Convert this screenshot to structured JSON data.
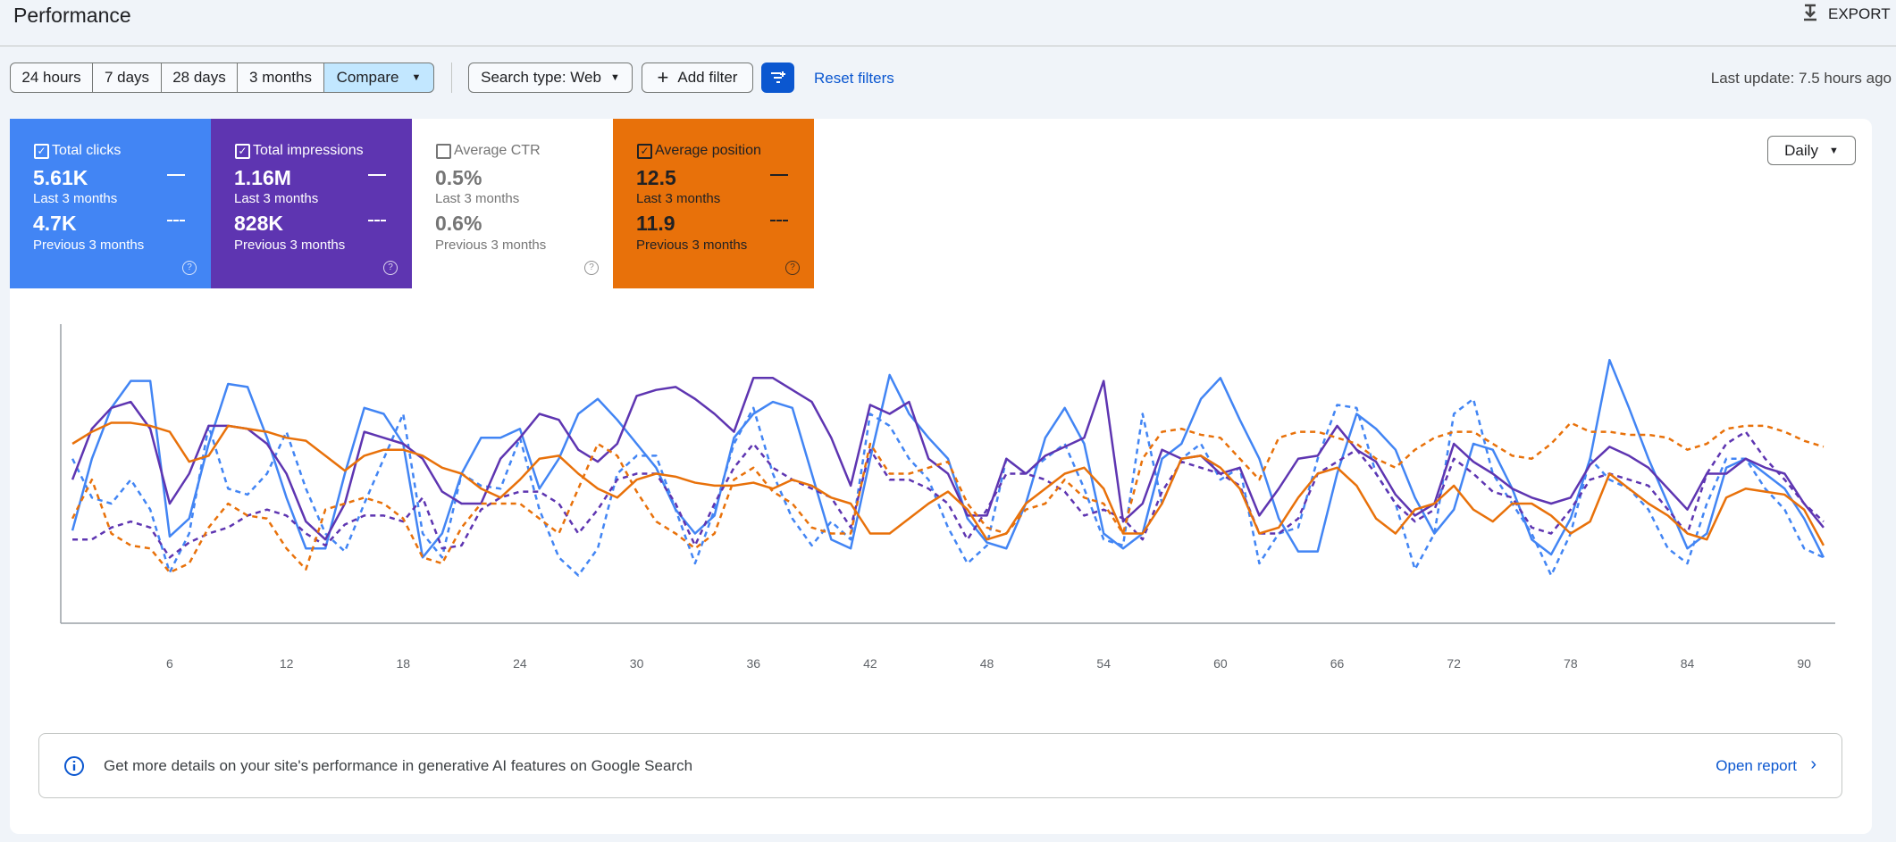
{
  "header": {
    "title": "Performance",
    "export": "EXPORT"
  },
  "toolbar": {
    "ranges": [
      "24 hours",
      "7 days",
      "28 days",
      "3 months"
    ],
    "compare": "Compare",
    "search_type": "Search type: Web",
    "add_filter": "Add filter",
    "reset_filters": "Reset filters",
    "last_update": "Last update: 7.5 hours ago"
  },
  "metrics": [
    {
      "label": "Total clicks",
      "current": "5.61K",
      "current_period": "Last 3 months",
      "previous": "4.7K",
      "previous_period": "Previous 3 months",
      "checked": true,
      "color": "#4285f4",
      "text_color": "#ffffff"
    },
    {
      "label": "Total impressions",
      "current": "1.16M",
      "current_period": "Last 3 months",
      "previous": "828K",
      "previous_period": "Previous 3 months",
      "checked": true,
      "color": "#5e35b1",
      "text_color": "#ffffff"
    },
    {
      "label": "Average CTR",
      "current": "0.5%",
      "current_period": "Last 3 months",
      "previous": "0.6%",
      "previous_period": "Previous 3 months",
      "checked": false,
      "color": "#ffffff",
      "text_color": "#757575"
    },
    {
      "label": "Average position",
      "current": "12.5",
      "current_period": "Last 3 months",
      "previous": "11.9",
      "previous_period": "Previous 3 months",
      "checked": true,
      "color": "#e8710a",
      "text_color": "#202124"
    }
  ],
  "granularity": "Daily",
  "chart_data": {
    "type": "line",
    "x": [
      1,
      2,
      3,
      4,
      5,
      6,
      7,
      8,
      9,
      10,
      11,
      12,
      13,
      14,
      15,
      16,
      17,
      18,
      19,
      20,
      21,
      22,
      23,
      24,
      25,
      26,
      27,
      28,
      29,
      30,
      31,
      32,
      33,
      34,
      35,
      36,
      37,
      38,
      39,
      40,
      41,
      42,
      43,
      44,
      45,
      46,
      47,
      48,
      49,
      50,
      51,
      52,
      53,
      54,
      55,
      56,
      57,
      58,
      59,
      60,
      61,
      62,
      63,
      64,
      65,
      66,
      67,
      68,
      69,
      70,
      71,
      72,
      73,
      74,
      75,
      76,
      77,
      78,
      79,
      80,
      81,
      82,
      83,
      84,
      85,
      86,
      87,
      88,
      89,
      90,
      91
    ],
    "xlim": [
      0.4,
      91.6
    ],
    "xticks": [
      6,
      12,
      18,
      24,
      30,
      36,
      42,
      48,
      54,
      60,
      66,
      72,
      78,
      84,
      90
    ],
    "ylim": [
      0,
      100
    ],
    "series": [
      {
        "color": "#4285f4",
        "dashed": false,
        "values": [
          31,
          55,
          72,
          81,
          81,
          29,
          35,
          60,
          80,
          79,
          62,
          42,
          25,
          25,
          50,
          72,
          70,
          60,
          22,
          30,
          50,
          62,
          62,
          65,
          45,
          55,
          70,
          75,
          68,
          60,
          52,
          38,
          30,
          36,
          62,
          70,
          74,
          72,
          50,
          28,
          25,
          55,
          83,
          70,
          62,
          55,
          35,
          27,
          25,
          40,
          62,
          72,
          60,
          30,
          25,
          30,
          55,
          60,
          75,
          82,
          68,
          55,
          35,
          24,
          24,
          50,
          70,
          65,
          58,
          42,
          30,
          38,
          60,
          58,
          45,
          28,
          23,
          35,
          55,
          88,
          72,
          55,
          40,
          25,
          30,
          52,
          55,
          50,
          45,
          35,
          22
        ]
      },
      {
        "color": "#4285f4",
        "dashed": true,
        "values": [
          55,
          42,
          40,
          48,
          38,
          17,
          30,
          66,
          45,
          43,
          50,
          64,
          45,
          30,
          24,
          40,
          55,
          70,
          30,
          22,
          50,
          46,
          45,
          62,
          38,
          22,
          16,
          25,
          50,
          56,
          56,
          38,
          20,
          38,
          60,
          72,
          50,
          35,
          26,
          34,
          28,
          70,
          66,
          55,
          48,
          32,
          20,
          26,
          55,
          50,
          55,
          60,
          45,
          28,
          26,
          70,
          40,
          55,
          60,
          48,
          52,
          20,
          30,
          32,
          55,
          73,
          72,
          50,
          40,
          18,
          30,
          70,
          75,
          50,
          40,
          30,
          16,
          30,
          55,
          48,
          45,
          38,
          25,
          20,
          40,
          55,
          55,
          45,
          38,
          25,
          22
        ]
      },
      {
        "color": "#5e35b1",
        "dashed": false,
        "values": [
          48,
          65,
          72,
          74,
          65,
          40,
          50,
          66,
          66,
          65,
          60,
          50,
          34,
          28,
          40,
          64,
          62,
          60,
          55,
          44,
          40,
          40,
          55,
          62,
          70,
          68,
          58,
          54,
          60,
          76,
          78,
          79,
          75,
          70,
          64,
          82,
          82,
          78,
          74,
          62,
          46,
          73,
          70,
          74,
          55,
          50,
          36,
          36,
          55,
          50,
          56,
          59,
          62,
          81,
          34,
          40,
          58,
          55,
          56,
          50,
          52,
          36,
          45,
          55,
          56,
          66,
          58,
          54,
          43,
          36,
          40,
          60,
          54,
          50,
          45,
          42,
          40,
          42,
          53,
          59,
          56,
          52,
          45,
          38,
          50,
          50,
          55,
          52,
          50,
          40,
          32
        ]
      },
      {
        "color": "#5e35b1",
        "dashed": true,
        "values": [
          28,
          28,
          32,
          34,
          32,
          22,
          27,
          30,
          32,
          36,
          38,
          36,
          30,
          26,
          33,
          36,
          36,
          34,
          42,
          25,
          26,
          38,
          42,
          44,
          44,
          40,
          30,
          38,
          48,
          50,
          50,
          40,
          26,
          40,
          52,
          60,
          52,
          48,
          45,
          42,
          32,
          58,
          48,
          48,
          45,
          40,
          28,
          38,
          50,
          50,
          48,
          44,
          36,
          38,
          35,
          28,
          44,
          54,
          52,
          50,
          46,
          30,
          30,
          35,
          50,
          54,
          58,
          50,
          40,
          34,
          38,
          55,
          50,
          44,
          42,
          32,
          30,
          38,
          48,
          50,
          48,
          46,
          38,
          30,
          50,
          60,
          64,
          55,
          48,
          40,
          34
        ]
      },
      {
        "color": "#e8710a",
        "dashed": false,
        "values": [
          60,
          64,
          67,
          67,
          66,
          64,
          54,
          56,
          66,
          65,
          64,
          62,
          61,
          56,
          51,
          56,
          58,
          58,
          56,
          52,
          50,
          45,
          42,
          48,
          55,
          56,
          50,
          45,
          42,
          48,
          50,
          49,
          47,
          46,
          46,
          47,
          45,
          48,
          46,
          42,
          40,
          30,
          30,
          35,
          40,
          44,
          38,
          28,
          30,
          40,
          45,
          50,
          52,
          45,
          30,
          30,
          40,
          55,
          56,
          52,
          45,
          30,
          32,
          42,
          50,
          52,
          46,
          35,
          30,
          38,
          40,
          46,
          38,
          34,
          40,
          40,
          36,
          30,
          34,
          50,
          45,
          40,
          36,
          30,
          28,
          42,
          45,
          44,
          43,
          38,
          26
        ]
      },
      {
        "color": "#e8710a",
        "dashed": true,
        "values": [
          35,
          48,
          30,
          26,
          25,
          17,
          20,
          32,
          40,
          36,
          35,
          25,
          18,
          38,
          40,
          42,
          40,
          35,
          22,
          20,
          32,
          40,
          40,
          40,
          35,
          30,
          45,
          60,
          56,
          44,
          34,
          30,
          25,
          30,
          48,
          52,
          44,
          40,
          32,
          30,
          30,
          60,
          50,
          50,
          52,
          54,
          40,
          32,
          30,
          38,
          40,
          48,
          42,
          40,
          30,
          55,
          64,
          65,
          63,
          62,
          55,
          48,
          62,
          64,
          64,
          62,
          60,
          55,
          52,
          58,
          62,
          64,
          64,
          60,
          56,
          55,
          60,
          67,
          64,
          64,
          63,
          63,
          62,
          58,
          60,
          65,
          66,
          66,
          64,
          61,
          59
        ]
      }
    ]
  },
  "banner": {
    "text": "Get more details on your site's performance in generative AI features on Google Search",
    "link": "Open report"
  }
}
